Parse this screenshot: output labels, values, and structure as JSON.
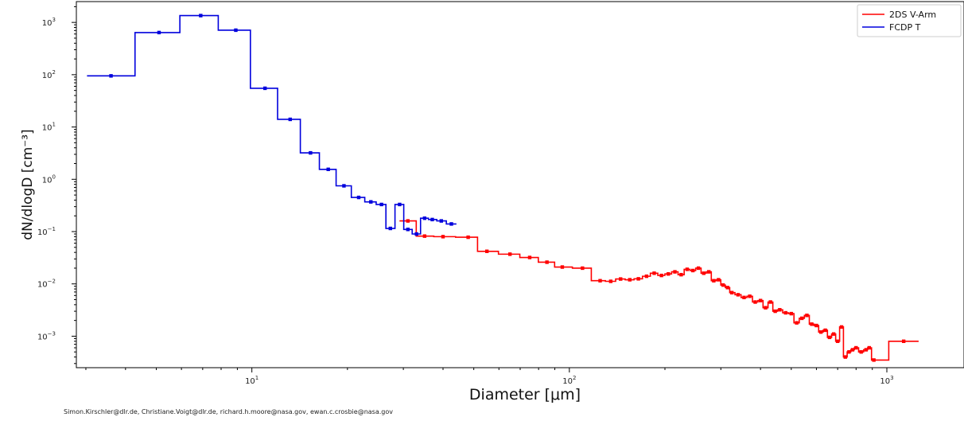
{
  "credit_line": "Simon.Kirschler@dlr.de, Christiane.Voigt@dlr.de, richard.h.moore@nasa.gov, ewan.c.crosbie@nasa.gov",
  "colors": {
    "series_1": "#ff0000",
    "series_2": "#0000dd",
    "axes": "#000000",
    "background": "#ffffff"
  },
  "chart_data": {
    "type": "line",
    "style": "step",
    "title": "",
    "xlabel": "Diameter [μm]",
    "ylabel": "dN/dlogD [cm⁻³]",
    "xscale": "log",
    "yscale": "log",
    "xlim": [
      2.8,
      1750
    ],
    "ylim": [
      0.00025,
      2500
    ],
    "grid": false,
    "legend": "top-right",
    "x_ticks": [
      {
        "value": 10,
        "base": "10",
        "exp": "1"
      },
      {
        "value": 100,
        "base": "10",
        "exp": "2"
      },
      {
        "value": 1000,
        "base": "10",
        "exp": "3"
      }
    ],
    "y_ticks": [
      {
        "value": 1000,
        "base": "10",
        "exp": "3"
      },
      {
        "value": 100,
        "base": "10",
        "exp": "2"
      },
      {
        "value": 10,
        "base": "10",
        "exp": "1"
      },
      {
        "value": 1,
        "base": "10",
        "exp": "0"
      },
      {
        "value": 0.1,
        "base": "10",
        "exp": "−1"
      },
      {
        "value": 0.01,
        "base": "10",
        "exp": "−2"
      },
      {
        "value": 0.001,
        "base": "10",
        "exp": "−3"
      }
    ],
    "series": [
      {
        "name": "2DS V-Arm",
        "color": "#ff0000",
        "points": [
          [
            31,
            0.16
          ],
          [
            35,
            0.082
          ],
          [
            40,
            0.08
          ],
          [
            48,
            0.078
          ],
          [
            55,
            0.042
          ],
          [
            65,
            0.037
          ],
          [
            75,
            0.032
          ],
          [
            85,
            0.026
          ],
          [
            95,
            0.021
          ],
          [
            110,
            0.02
          ],
          [
            125,
            0.0115
          ],
          [
            135,
            0.0112
          ],
          [
            145,
            0.0124
          ],
          [
            155,
            0.012
          ],
          [
            165,
            0.0125
          ],
          [
            175,
            0.014
          ],
          [
            185,
            0.016
          ],
          [
            195,
            0.0145
          ],
          [
            205,
            0.0155
          ],
          [
            215,
            0.017
          ],
          [
            225,
            0.015
          ],
          [
            235,
            0.019
          ],
          [
            245,
            0.018
          ],
          [
            255,
            0.02
          ],
          [
            265,
            0.016
          ],
          [
            275,
            0.017
          ],
          [
            285,
            0.0115
          ],
          [
            295,
            0.012
          ],
          [
            305,
            0.0095
          ],
          [
            315,
            0.0085
          ],
          [
            325,
            0.0068
          ],
          [
            340,
            0.0062
          ],
          [
            355,
            0.0055
          ],
          [
            370,
            0.0058
          ],
          [
            385,
            0.0045
          ],
          [
            400,
            0.0048
          ],
          [
            415,
            0.0035
          ],
          [
            430,
            0.0045
          ],
          [
            445,
            0.003
          ],
          [
            460,
            0.0032
          ],
          [
            480,
            0.0028
          ],
          [
            500,
            0.0027
          ],
          [
            520,
            0.0018
          ],
          [
            540,
            0.0022
          ],
          [
            560,
            0.0025
          ],
          [
            580,
            0.0017
          ],
          [
            600,
            0.0016
          ],
          [
            620,
            0.0012
          ],
          [
            640,
            0.0013
          ],
          [
            660,
            0.00095
          ],
          [
            680,
            0.0011
          ],
          [
            700,
            0.0008
          ],
          [
            720,
            0.0015
          ],
          [
            740,
            0.0004
          ],
          [
            760,
            0.0005
          ],
          [
            780,
            0.00055
          ],
          [
            800,
            0.0006
          ],
          [
            830,
            0.0005
          ],
          [
            860,
            0.00055
          ],
          [
            880,
            0.0006
          ],
          [
            910,
            0.00035
          ],
          [
            1130,
            0.0008
          ]
        ]
      },
      {
        "name": "FCDP T",
        "color": "#0000dd",
        "points": [
          [
            3.6,
            95
          ],
          [
            5.1,
            640
          ],
          [
            6.9,
            1350
          ],
          [
            8.9,
            710
          ],
          [
            11.0,
            55
          ],
          [
            13.2,
            14
          ],
          [
            15.3,
            3.2
          ],
          [
            17.4,
            1.55
          ],
          [
            19.5,
            0.75
          ],
          [
            21.7,
            0.45
          ],
          [
            23.7,
            0.37
          ],
          [
            25.6,
            0.33
          ],
          [
            27.3,
            0.115
          ],
          [
            29.2,
            0.33
          ],
          [
            31.0,
            0.11
          ],
          [
            33.0,
            0.09
          ],
          [
            35.0,
            0.18
          ],
          [
            37.0,
            0.17
          ],
          [
            39.5,
            0.16
          ],
          [
            42.5,
            0.14
          ]
        ]
      }
    ]
  }
}
